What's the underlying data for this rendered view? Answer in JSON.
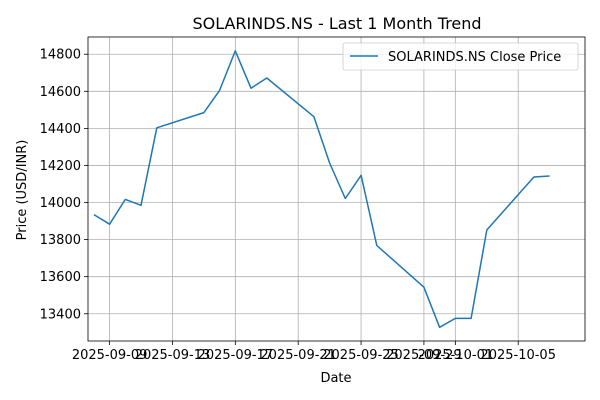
{
  "chart_data": {
    "type": "line",
    "title": "SOLARINDS.NS - Last 1 Month Trend",
    "xlabel": "Date",
    "ylabel": "Price (USD/INR)",
    "x_ticks": [
      "2025-09-09",
      "2025-09-13",
      "2025-09-17",
      "2025-09-21",
      "2025-09-25",
      "2025-09-29",
      "2025-10-01",
      "2025-10-05"
    ],
    "y_ticks": [
      13400,
      13600,
      13800,
      14000,
      14200,
      14400,
      14600,
      14800
    ],
    "xlim": [
      "2025-09-07T15:00",
      "2025-10-09T06:00"
    ],
    "ylim": [
      13253,
      14893
    ],
    "grid": true,
    "legend_position": "top-right",
    "series": [
      {
        "name": "SOLARINDS.NS Close Price",
        "color": "#1f77b4",
        "points": [
          {
            "x": "2025-09-08",
            "y": 13935
          },
          {
            "x": "2025-09-09",
            "y": 13883
          },
          {
            "x": "2025-09-10",
            "y": 14017
          },
          {
            "x": "2025-09-11",
            "y": 13985
          },
          {
            "x": "2025-09-12",
            "y": 14403
          },
          {
            "x": "2025-09-15",
            "y": 14485
          },
          {
            "x": "2025-09-16",
            "y": 14605
          },
          {
            "x": "2025-09-17",
            "y": 14818
          },
          {
            "x": "2025-09-18",
            "y": 14617
          },
          {
            "x": "2025-09-19",
            "y": 14672
          },
          {
            "x": "2025-09-22",
            "y": 14463
          },
          {
            "x": "2025-09-23",
            "y": 14213
          },
          {
            "x": "2025-09-24",
            "y": 14022
          },
          {
            "x": "2025-09-25",
            "y": 14147
          },
          {
            "x": "2025-09-26",
            "y": 13768
          },
          {
            "x": "2025-09-29",
            "y": 13543
          },
          {
            "x": "2025-09-30",
            "y": 13327
          },
          {
            "x": "2025-10-01",
            "y": 13375
          },
          {
            "x": "2025-10-02",
            "y": 13375
          },
          {
            "x": "2025-10-03",
            "y": 13852
          },
          {
            "x": "2025-10-06",
            "y": 14138
          },
          {
            "x": "2025-10-07",
            "y": 14143
          }
        ]
      }
    ]
  }
}
